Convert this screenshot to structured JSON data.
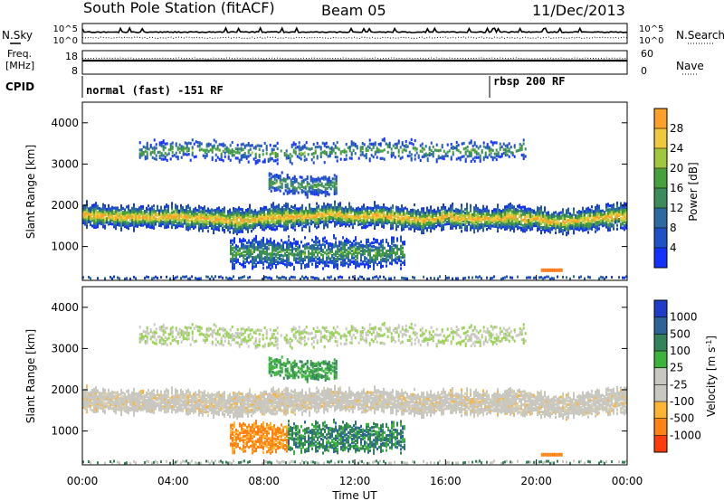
{
  "header": {
    "station": "South Pole Station (fitACF)",
    "beam": "Beam 05",
    "date": "11/Dec/2013"
  },
  "left_labels": {
    "nsky": "N.Sky",
    "freq": "Freq.",
    "freq_unit": "[MHz]",
    "cpid": "CPID"
  },
  "right_labels": {
    "nsearch": "N.Search",
    "nave": "Nave"
  },
  "strip_ticks": {
    "noise_left": [
      "10^5",
      "10^0"
    ],
    "noise_right": [
      "10^5",
      "10^0"
    ],
    "freq_left": [
      "18",
      "8"
    ],
    "nave_right": [
      "60",
      "0"
    ]
  },
  "cpid_segments": [
    {
      "label": "normal (fast) -151 RF",
      "start_hour": 0
    },
    {
      "label": "rbsp 200 RF",
      "start_hour": 18
    }
  ],
  "colors": {
    "power_scale": [
      "#1432ff",
      "#1e50c8",
      "#2a6aa0",
      "#3c8c5a",
      "#46a03c",
      "#a0c83c",
      "#f0c83c",
      "#ffa028",
      "#ff7814",
      "#ff3c0a",
      "#e60000"
    ],
    "velocity_scale": [
      "#1e3cc8",
      "#2850b4",
      "#2d6496",
      "#32825a",
      "#3cb43c",
      "#96d250",
      "#c8c8c0",
      "#dcd2aa",
      "#ffb432",
      "#ff8214",
      "#ff3c0a",
      "#e10000"
    ]
  },
  "chart_data": [
    {
      "type": "heatmap",
      "panel": "power",
      "ylabel": "Slant Range [km]",
      "colorbar_label": "Power [dB]",
      "colorbar_ticks": [
        4,
        8,
        12,
        16,
        20,
        24,
        28
      ],
      "ylim": [
        180,
        4500
      ],
      "yticks": [
        1000,
        2000,
        3000,
        4000
      ],
      "bands": [
        {
          "name": "main",
          "from": 0,
          "to": 24,
          "center_km": [
            1750,
            1730,
            1720,
            1700,
            1720,
            1680,
            1650,
            1620,
            1700,
            1710,
            1720,
            1780,
            1720,
            1760,
            1700,
            1650,
            1720,
            1680,
            1660,
            1700,
            1660,
            1580,
            1650,
            1700,
            1760
          ],
          "width_km": 250
        },
        {
          "name": "lower",
          "from": 6.5,
          "to": 14.2,
          "center_km": [
            850,
            860,
            820,
            830,
            850,
            860,
            830,
            870
          ],
          "width_km": 300
        },
        {
          "name": "upper",
          "from": 8.2,
          "to": 11.2,
          "center_km": [
            2550,
            2500,
            2450,
            2500
          ],
          "width_km": 200
        },
        {
          "name": "far",
          "from": 2.5,
          "to": 19.5,
          "center_km": [
            3300,
            3350,
            3300,
            3250,
            3300,
            3350,
            3300,
            3300,
            3350
          ],
          "width_km": 200
        }
      ]
    },
    {
      "type": "heatmap",
      "panel": "velocity",
      "ylabel": "Slant Range [km]",
      "xlabel": "Time UT",
      "colorbar_label": "Velocity [m s^-1]",
      "colorbar_ticks": [
        1000,
        500,
        100,
        25,
        -25,
        -100,
        -500,
        -1000
      ],
      "ylim": [
        180,
        4500
      ],
      "yticks": [
        1000,
        2000,
        3000,
        4000
      ],
      "xticks": [
        "00:00",
        "04:00",
        "08:00",
        "12:00",
        "16:00",
        "20:00",
        "00:00"
      ],
      "xlim_hours": [
        0,
        24
      ]
    }
  ]
}
